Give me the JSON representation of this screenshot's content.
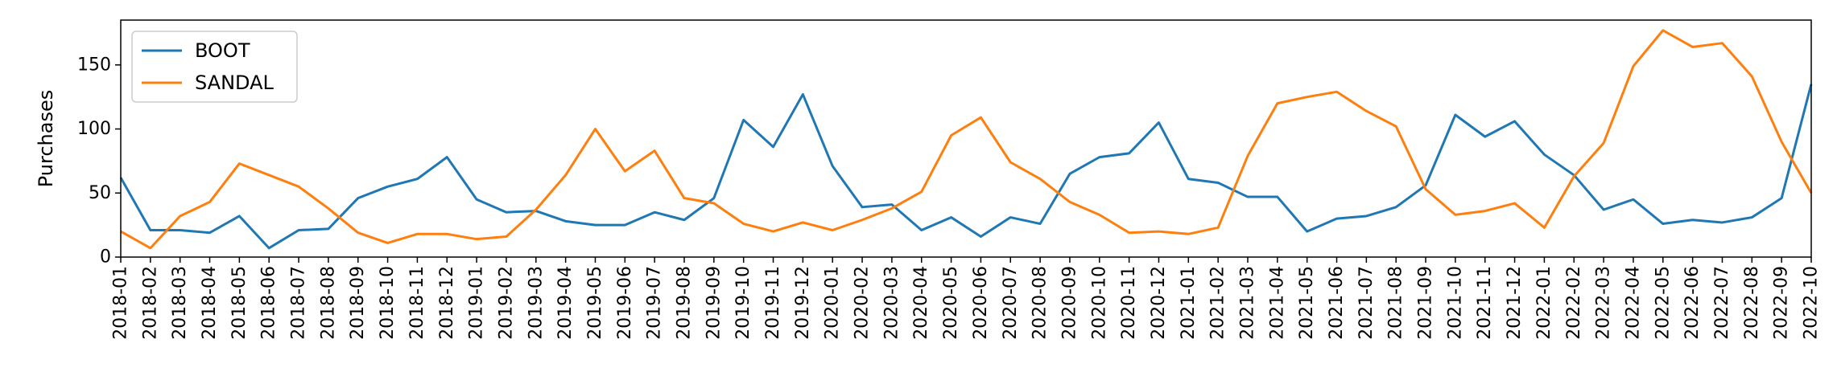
{
  "chart_data": {
    "type": "line",
    "ylabel": "Purchases",
    "xlabel": "",
    "title": "",
    "ylim": [
      0,
      185
    ],
    "yticks": [
      0,
      50,
      100,
      150
    ],
    "legend_position": "top-left",
    "grid": false,
    "categories": [
      "2018-01",
      "2018-02",
      "2018-03",
      "2018-04",
      "2018-05",
      "2018-06",
      "2018-07",
      "2018-08",
      "2018-09",
      "2018-10",
      "2018-11",
      "2018-12",
      "2019-01",
      "2019-02",
      "2019-03",
      "2019-04",
      "2019-05",
      "2019-06",
      "2019-07",
      "2019-08",
      "2019-09",
      "2019-10",
      "2019-11",
      "2019-12",
      "2020-01",
      "2020-02",
      "2020-03",
      "2020-04",
      "2020-05",
      "2020-06",
      "2020-07",
      "2020-08",
      "2020-09",
      "2020-10",
      "2020-11",
      "2020-12",
      "2021-01",
      "2021-02",
      "2021-03",
      "2021-04",
      "2021-05",
      "2021-06",
      "2021-07",
      "2021-08",
      "2021-09",
      "2021-10",
      "2021-11",
      "2021-12",
      "2022-01",
      "2022-02",
      "2022-03",
      "2022-04",
      "2022-05",
      "2022-06",
      "2022-07",
      "2022-08",
      "2022-09",
      "2022-10"
    ],
    "series": [
      {
        "name": "BOOT",
        "color": "#1f77b4",
        "values": [
          62,
          21,
          21,
          19,
          32,
          7,
          21,
          22,
          46,
          55,
          61,
          78,
          45,
          35,
          36,
          28,
          25,
          25,
          35,
          29,
          46,
          107,
          86,
          127,
          71,
          39,
          41,
          21,
          31,
          16,
          31,
          26,
          65,
          78,
          81,
          105,
          61,
          58,
          47,
          47,
          20,
          30,
          32,
          39,
          56,
          111,
          94,
          106,
          80,
          64,
          37,
          45,
          26,
          29,
          27,
          31,
          46,
          135
        ]
      },
      {
        "name": "SANDAL",
        "color": "#ff7f0e",
        "values": [
          20,
          7,
          32,
          43,
          73,
          64,
          55,
          38,
          19,
          11,
          18,
          18,
          14,
          16,
          37,
          64,
          100,
          67,
          83,
          46,
          42,
          26,
          20,
          27,
          21,
          29,
          38,
          51,
          95,
          109,
          74,
          61,
          43,
          33,
          19,
          20,
          18,
          23,
          79,
          120,
          125,
          129,
          114,
          102,
          53,
          33,
          36,
          42,
          23,
          63,
          89,
          149,
          177,
          164,
          167,
          141,
          90,
          50
        ]
      }
    ]
  }
}
